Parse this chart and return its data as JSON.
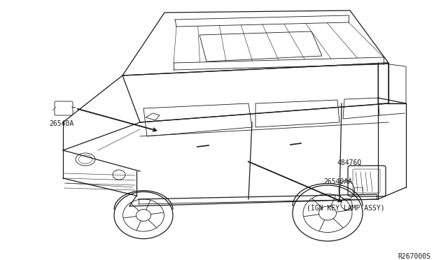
{
  "background_color": "#ffffff",
  "fig_width": 6.4,
  "fig_height": 3.72,
  "dpi": 100,
  "ref_code": "R267000S",
  "label_26540A": "26540A",
  "label_48476Q": "48476Q",
  "label_26540AA": "26540AA",
  "label_ign": "(IGN KEY LAMP ASSY)",
  "color": "#1a1a1a",
  "lw_main": 0.9,
  "lw_detail": 0.6,
  "lw_thin": 0.4
}
